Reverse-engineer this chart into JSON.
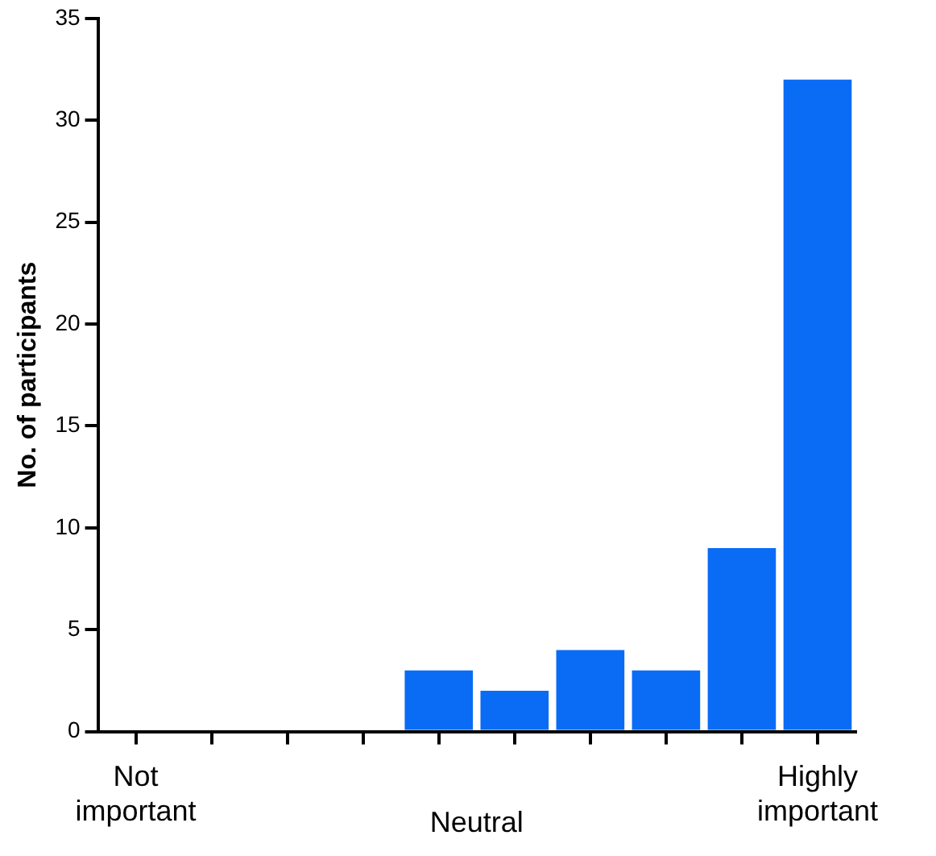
{
  "chart_data": {
    "type": "bar",
    "ylabel": "No. of participants",
    "categories": [
      "Not important",
      null,
      null,
      null,
      null,
      null,
      null,
      null,
      null,
      "Highly important"
    ],
    "values": [
      0,
      0,
      0,
      0,
      3,
      2,
      4,
      3,
      9,
      32
    ],
    "color": "#0a6cf5",
    "ylim": [
      0,
      35
    ],
    "yticks": [
      0,
      5,
      10,
      15,
      20,
      25,
      30,
      35
    ],
    "grid": false,
    "annotations": [
      "Neutral"
    ]
  }
}
